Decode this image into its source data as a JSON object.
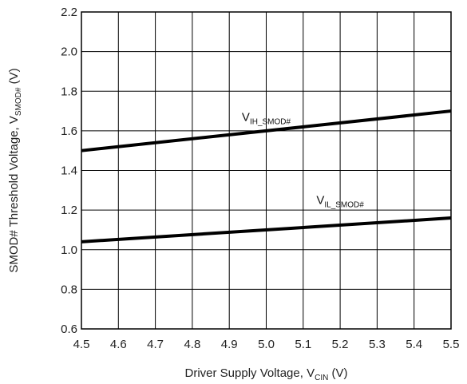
{
  "chart_data": {
    "type": "line",
    "xlabel": {
      "text": "Driver Supply Voltage, V",
      "sub": "CIN",
      "suffix": " (V)"
    },
    "ylabel": {
      "text": "SMOD# Threshold Voltage, V",
      "sub": "SMOD#",
      "suffix": " (V)"
    },
    "xlim": [
      4.5,
      5.5
    ],
    "ylim": [
      0.6,
      2.2
    ],
    "xticks": [
      "4.5",
      "4.6",
      "4.7",
      "4.8",
      "4.9",
      "5.0",
      "5.1",
      "5.2",
      "5.3",
      "5.4",
      "5.5"
    ],
    "yticks": [
      "0.6",
      "0.8",
      "1.0",
      "1.2",
      "1.4",
      "1.6",
      "1.8",
      "2.0",
      "2.2"
    ],
    "grid": true,
    "series": [
      {
        "name": "V",
        "name_sub": "IH_SMOD#",
        "label_at": [
          5.0,
          1.65
        ],
        "x": [
          4.5,
          5.5
        ],
        "y": [
          1.5,
          1.7
        ]
      },
      {
        "name": "V",
        "name_sub": "IL_SMOD#",
        "label_at": [
          5.2,
          1.23
        ],
        "x": [
          4.5,
          5.5
        ],
        "y": [
          1.04,
          1.16
        ]
      }
    ]
  }
}
